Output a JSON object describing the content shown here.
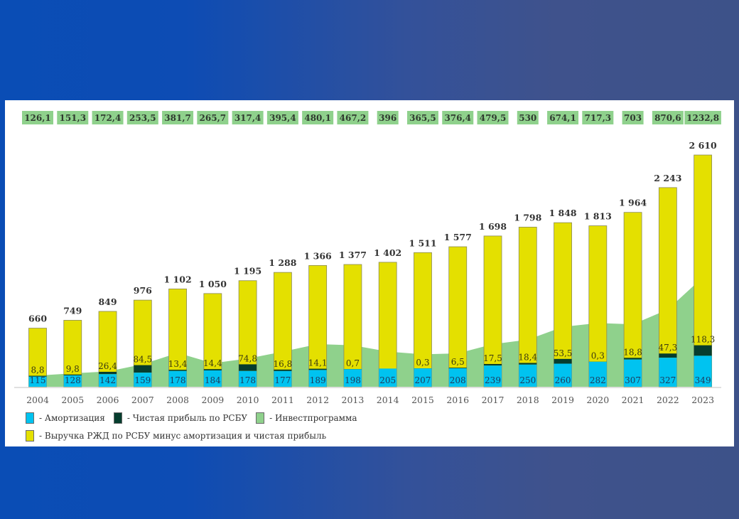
{
  "colors": {
    "amortization": "#00c3f0",
    "net_profit": "#063d2e",
    "investprogram": "#8fd18c",
    "revenue_rest": "#e4e000"
  },
  "chart_data": {
    "type": "bar",
    "stacked": true,
    "title": "",
    "xlabel": "",
    "ylabel": "",
    "categories": [
      "2004",
      "2005",
      "2006",
      "2007",
      "2008",
      "2009",
      "2010",
      "2011",
      "2012",
      "2013",
      "2014",
      "2015",
      "2016",
      "2017",
      "2018",
      "2019",
      "2020",
      "2021",
      "2022",
      "2023"
    ],
    "totals": [
      660,
      749,
      849,
      976,
      1102,
      1050,
      1195,
      1288,
      1366,
      1377,
      1402,
      1511,
      1577,
      1698,
      1798,
      1848,
      1813,
      1964,
      2243,
      2610
    ],
    "total_labels": [
      "660",
      "749",
      "849",
      "976",
      "1 102",
      "1 050",
      "1 195",
      "1 288",
      "1 366",
      "1 377",
      "1 402",
      "1 511",
      "1 577",
      "1 698",
      "1 798",
      "1 848",
      "1 813",
      "1 964",
      "2 243",
      "2 610"
    ],
    "series": [
      {
        "name": "Амортизация",
        "key": "amortization",
        "values": [
          115,
          128,
          142,
          159,
          178,
          184,
          178,
          177,
          189,
          198,
          205,
          207,
          208,
          239,
          250,
          260,
          282,
          307,
          327,
          349
        ],
        "labels": [
          "115",
          "128",
          "142",
          "159",
          "178",
          "184",
          "178",
          "177",
          "189",
          "198",
          "205",
          "207",
          "208",
          "239",
          "250",
          "260",
          "282",
          "307",
          "327",
          "349"
        ]
      },
      {
        "name": "Чистая прибыль по РСБУ",
        "key": "net_profit",
        "values": [
          8.8,
          9.8,
          26.4,
          84.5,
          13.4,
          14.4,
          74.8,
          16.8,
          14.1,
          0.7,
          null,
          0.3,
          6.5,
          17.5,
          18.4,
          53.5,
          0.3,
          18.8,
          47.3,
          118.3
        ],
        "labels": [
          "8,8",
          "9,8",
          "26,4",
          "84,5",
          "13,4",
          "14,4",
          "74,8",
          "16,8",
          "14,1",
          "0,7",
          "",
          "0,3",
          "6,5",
          "17,5",
          "18,4",
          "53,5",
          "0,3",
          "18,8",
          "47,3",
          "118,3"
        ]
      },
      {
        "name": "Выручка РЖД по РСБУ минус амортизация и чистая прибыль",
        "key": "revenue_rest",
        "values": [
          536.2,
          611.2,
          680.6,
          732.5,
          910.6,
          851.6,
          942.2,
          1094.2,
          1162.9,
          1178.3,
          1197,
          1303.7,
          1362.5,
          1441.5,
          1529.6,
          1534.5,
          1530.7,
          1638.2,
          1868.7,
          2142.7
        ]
      },
      {
        "name": "Инвестпрограмма",
        "key": "investprogram",
        "render": "area",
        "values": [
          126.1,
          151.3,
          172.4,
          253.5,
          381.7,
          265.7,
          317.4,
          395.4,
          480.1,
          467.2,
          396,
          365.5,
          376.4,
          479.5,
          530,
          674.1,
          717.3,
          703,
          870.6,
          1232.8
        ],
        "labels": [
          "126,1",
          "151,3",
          "172,4",
          "253,5",
          "381,7",
          "265,7",
          "317,4",
          "395,4",
          "480,1",
          "467,2",
          "396",
          "365,5",
          "376,4",
          "479,5",
          "530",
          "674,1",
          "717,3",
          "703",
          "870,6",
          "1232,8"
        ]
      }
    ],
    "ylim": [
      0,
      2700
    ],
    "grid": false,
    "legend": {
      "placement": "bottom-left",
      "entries": [
        {
          "key": "amortization",
          "text": "- Амортизация"
        },
        {
          "key": "net_profit",
          "text": "- Чистая прибыль по РСБУ"
        },
        {
          "key": "investprogram",
          "text": "- Инвестпрограмма"
        },
        {
          "key": "revenue_rest",
          "text": "- Выручка РЖД по РСБУ минус амортизация и чистая прибыль"
        }
      ]
    }
  }
}
